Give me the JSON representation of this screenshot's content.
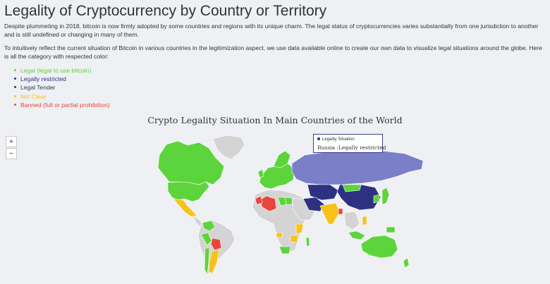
{
  "page": {
    "title": "Legality of Cryptocurrency by Country or Territory",
    "paragraph1": "Despite plummeting in 2018, bitcoin is now firmly adopted by some countries and regions with its unique charm. The legal status of cryptocurrencies varies substantially from one jurisdiction to another and is still undefined or changing in many of them.",
    "paragraph2": "To intuitively reflect the current situation of Bitcoin in various countries in the legitimization aspect, we use data available online to create our own data to visualize legal situations around the globe. Here is all the category with respected color:"
  },
  "categories": [
    {
      "label": "Legal (legal to use bitcoin)",
      "color": "#5cd43b"
    },
    {
      "label": "Legally restricted",
      "color": "#2e3081"
    },
    {
      "label": "Legal Tender",
      "color": "#2d3e4a"
    },
    {
      "label": "Not Clear",
      "color": "#f7c21b"
    },
    {
      "label": "Banned (full or partial prohibition)",
      "color": "#e8453c"
    }
  ],
  "map": {
    "title": "Crypto Legality Situation In Main Countries of the World",
    "zoom_in_label": "+",
    "zoom_out_label": "−",
    "colors": {
      "legal": "#5cd43b",
      "restricted": "#2e3081",
      "hovered": "#7b7fc8",
      "not_clear": "#f7c21b",
      "banned": "#e8453c",
      "no_data": "#d4d4d4"
    },
    "tooltip": {
      "series": "Legality Situation",
      "text": "Russia :Legally restricted"
    }
  }
}
